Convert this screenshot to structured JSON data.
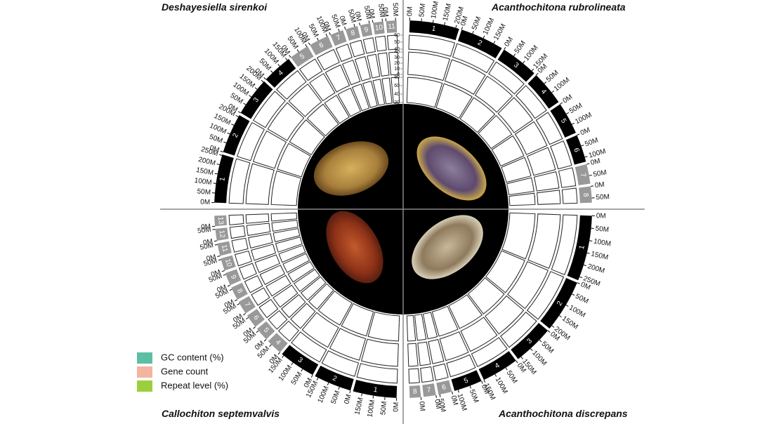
{
  "genomes": [
    {
      "species": "Deshayesiella sirenkoi",
      "chromosomes": [
        {
          "label": "1",
          "size": 255,
          "color": "#000000",
          "ticks": [
            {
              "value": 0,
              "label": "0M"
            },
            {
              "value": 50,
              "label": "50M"
            },
            {
              "value": 100,
              "label": "100M"
            },
            {
              "value": 150,
              "label": "150M"
            },
            {
              "value": 200,
              "label": "200M"
            },
            {
              "value": 250,
              "label": "250M"
            }
          ]
        },
        {
          "label": "2",
          "size": 210,
          "color": "#000000",
          "ticks": [
            {
              "value": 0,
              "label": "0M"
            },
            {
              "value": 50,
              "label": "50M"
            },
            {
              "value": 100,
              "label": "100M"
            },
            {
              "value": 150,
              "label": "150M"
            },
            {
              "value": 200,
              "label": "200M"
            }
          ]
        },
        {
          "label": "3",
          "size": 205,
          "color": "#000000",
          "ticks": [
            {
              "value": 0,
              "label": "0M"
            },
            {
              "value": 50,
              "label": "50M"
            },
            {
              "value": 100,
              "label": "100M"
            },
            {
              "value": 150,
              "label": "150M"
            },
            {
              "value": 200,
              "label": "200M"
            }
          ]
        },
        {
          "label": "4",
          "size": 160,
          "color": "#000000",
          "ticks": [
            {
              "value": 0,
              "label": "0M"
            },
            {
              "value": 50,
              "label": "50M"
            },
            {
              "value": 100,
              "label": "100M"
            },
            {
              "value": 150,
              "label": "150M"
            }
          ]
        },
        {
          "label": "5",
          "size": 105,
          "color": "#999999",
          "ticks": [
            {
              "value": 0,
              "label": "0M"
            },
            {
              "value": 50,
              "label": "50M"
            },
            {
              "value": 100,
              "label": "100M"
            }
          ]
        },
        {
          "label": "6",
          "size": 105,
          "color": "#999999",
          "ticks": [
            {
              "value": 0,
              "label": "0M"
            },
            {
              "value": 50,
              "label": "50M"
            },
            {
              "value": 100,
              "label": "100M"
            }
          ]
        },
        {
          "label": "7",
          "size": 70,
          "color": "#999999",
          "ticks": [
            {
              "value": 0,
              "label": "0M"
            },
            {
              "value": 50,
              "label": "50M"
            }
          ]
        },
        {
          "label": "8",
          "size": 65,
          "color": "#999999",
          "ticks": [
            {
              "value": 0,
              "label": "0M"
            },
            {
              "value": 50,
              "label": "50M"
            }
          ]
        },
        {
          "label": "9",
          "size": 55,
          "color": "#999999",
          "ticks": [
            {
              "value": 0,
              "label": "0M"
            },
            {
              "value": 50,
              "label": "50M"
            }
          ]
        },
        {
          "label": "10",
          "size": 55,
          "color": "#999999",
          "ticks": [
            {
              "value": 0,
              "label": "0M"
            },
            {
              "value": 50,
              "label": "50M"
            }
          ]
        },
        {
          "label": "11",
          "size": 55,
          "color": "#999999",
          "ticks": [
            {
              "value": 0,
              "label": "0M"
            },
            {
              "value": 50,
              "label": "50M"
            }
          ]
        }
      ]
    },
    {
      "species": "Acanthochitona rubrolineata",
      "chromosomes": [
        {
          "label": "1",
          "size": 215,
          "color": "#000000",
          "ticks": [
            {
              "value": 0,
              "label": "0M"
            },
            {
              "value": 50,
              "label": "50M"
            },
            {
              "value": 100,
              "label": "100M"
            },
            {
              "value": 150,
              "label": "150M"
            },
            {
              "value": 200,
              "label": "200M"
            }
          ]
        },
        {
          "label": "2",
          "size": 190,
          "color": "#000000",
          "ticks": [
            {
              "value": 0,
              "label": "0M"
            },
            {
              "value": 50,
              "label": "50M"
            },
            {
              "value": 100,
              "label": "100M"
            },
            {
              "value": 150,
              "label": "150M"
            }
          ]
        },
        {
          "label": "3",
          "size": 165,
          "color": "#000000",
          "ticks": [
            {
              "value": 0,
              "label": "0M"
            },
            {
              "value": 50,
              "label": "50M"
            },
            {
              "value": 100,
              "label": "100M"
            },
            {
              "value": 150,
              "label": "150M"
            }
          ]
        },
        {
          "label": "4",
          "size": 150,
          "color": "#000000",
          "ticks": [
            {
              "value": 0,
              "label": "0M"
            },
            {
              "value": 50,
              "label": "50M"
            },
            {
              "value": 100,
              "label": "100M"
            }
          ]
        },
        {
          "label": "5",
          "size": 140,
          "color": "#000000",
          "ticks": [
            {
              "value": 0,
              "label": "0M"
            },
            {
              "value": 50,
              "label": "50M"
            },
            {
              "value": 100,
              "label": "100M"
            }
          ]
        },
        {
          "label": "6",
          "size": 120,
          "color": "#000000",
          "ticks": [
            {
              "value": 0,
              "label": "0M"
            },
            {
              "value": 50,
              "label": "50M"
            },
            {
              "value": 100,
              "label": "100M"
            }
          ]
        },
        {
          "label": "7",
          "size": 85,
          "color": "#999999",
          "ticks": [
            {
              "value": 0,
              "label": "0M"
            },
            {
              "value": 50,
              "label": "50M"
            }
          ]
        },
        {
          "label": "8",
          "size": 70,
          "color": "#999999",
          "ticks": [
            {
              "value": 0,
              "label": "0M"
            },
            {
              "value": 50,
              "label": "50M"
            }
          ]
        }
      ]
    },
    {
      "species": "Acanthochitona discrepans",
      "chromosomes": [
        {
          "label": "1",
          "size": 265,
          "color": "#000000",
          "ticks": [
            {
              "value": 0,
              "label": "0M"
            },
            {
              "value": 50,
              "label": "50M"
            },
            {
              "value": 100,
              "label": "100M"
            },
            {
              "value": 150,
              "label": "150M"
            },
            {
              "value": 200,
              "label": "200M"
            },
            {
              "value": 250,
              "label": "250M"
            }
          ]
        },
        {
          "label": "2",
          "size": 215,
          "color": "#000000",
          "ticks": [
            {
              "value": 0,
              "label": "0M"
            },
            {
              "value": 50,
              "label": "50M"
            },
            {
              "value": 100,
              "label": "100M"
            },
            {
              "value": 150,
              "label": "150M"
            },
            {
              "value": 200,
              "label": "200M"
            }
          ]
        },
        {
          "label": "3",
          "size": 165,
          "color": "#000000",
          "ticks": [
            {
              "value": 0,
              "label": "0M"
            },
            {
              "value": 50,
              "label": "50M"
            },
            {
              "value": 100,
              "label": "100M"
            },
            {
              "value": 150,
              "label": "150M"
            }
          ]
        },
        {
          "label": "4",
          "size": 150,
          "color": "#000000",
          "ticks": [
            {
              "value": 0,
              "label": "0M"
            },
            {
              "value": 50,
              "label": "50M"
            },
            {
              "value": 100,
              "label": "100M"
            },
            {
              "value": 150,
              "label": "150M"
            }
          ]
        },
        {
          "label": "5",
          "size": 115,
          "color": "#000000",
          "ticks": [
            {
              "value": 0,
              "label": "0M"
            },
            {
              "value": 50,
              "label": "50M"
            },
            {
              "value": 100,
              "label": "100M"
            }
          ]
        },
        {
          "label": "6",
          "size": 55,
          "color": "#999999",
          "ticks": [
            {
              "value": 0,
              "label": "0M"
            },
            {
              "value": 50,
              "label": "50M"
            }
          ]
        },
        {
          "label": "7",
          "size": 50,
          "color": "#999999",
          "ticks": [
            {
              "value": 0,
              "label": "0M"
            }
          ]
        },
        {
          "label": "8",
          "size": 45,
          "color": "#999999",
          "ticks": [
            {
              "value": 0,
              "label": "0M"
            }
          ]
        }
      ]
    },
    {
      "species": "Callochiton septemvalvis",
      "chromosomes": [
        {
          "label": "1",
          "size": 190,
          "color": "#000000",
          "ticks": [
            {
              "value": 0,
              "label": "0M"
            },
            {
              "value": 50,
              "label": "50M"
            },
            {
              "value": 100,
              "label": "100M"
            },
            {
              "value": 150,
              "label": "150M"
            }
          ]
        },
        {
          "label": "2",
          "size": 165,
          "color": "#000000",
          "ticks": [
            {
              "value": 0,
              "label": "0M"
            },
            {
              "value": 50,
              "label": "50M"
            },
            {
              "value": 100,
              "label": "100M"
            },
            {
              "value": 150,
              "label": "150M"
            }
          ]
        },
        {
          "label": "3",
          "size": 160,
          "color": "#000000",
          "ticks": [
            {
              "value": 0,
              "label": "0M"
            },
            {
              "value": 50,
              "label": "50M"
            },
            {
              "value": 100,
              "label": "100M"
            },
            {
              "value": 150,
              "label": "150M"
            }
          ]
        },
        {
          "label": "4",
          "size": 70,
          "color": "#999999",
          "ticks": [
            {
              "value": 0,
              "label": "0M"
            },
            {
              "value": 50,
              "label": "50M"
            }
          ]
        },
        {
          "label": "5",
          "size": 60,
          "color": "#999999",
          "ticks": [
            {
              "value": 0,
              "label": "0M"
            },
            {
              "value": 50,
              "label": "50M"
            }
          ]
        },
        {
          "label": "6",
          "size": 60,
          "color": "#999999",
          "ticks": [
            {
              "value": 0,
              "label": "0M"
            },
            {
              "value": 50,
              "label": "50M"
            }
          ]
        },
        {
          "label": "7",
          "size": 58,
          "color": "#999999",
          "ticks": [
            {
              "value": 0,
              "label": "0M"
            },
            {
              "value": 50,
              "label": "50M"
            }
          ]
        },
        {
          "label": "8",
          "size": 58,
          "color": "#999999",
          "ticks": [
            {
              "value": 0,
              "label": "0M"
            },
            {
              "value": 50,
              "label": "50M"
            }
          ]
        },
        {
          "label": "9",
          "size": 56,
          "color": "#999999",
          "ticks": [
            {
              "value": 0,
              "label": "0M"
            },
            {
              "value": 50,
              "label": "50M"
            }
          ]
        },
        {
          "label": "10",
          "size": 55,
          "color": "#999999",
          "ticks": [
            {
              "value": 0,
              "label": "0M"
            },
            {
              "value": 50,
              "label": "50M"
            }
          ]
        },
        {
          "label": "11",
          "size": 55,
          "color": "#999999",
          "ticks": [
            {
              "value": 0,
              "label": "0M"
            },
            {
              "value": 50,
              "label": "50M"
            }
          ]
        },
        {
          "label": "12",
          "size": 52,
          "color": "#999999",
          "ticks": [
            {
              "value": 0,
              "label": "0M"
            },
            {
              "value": 50,
              "label": "50M"
            }
          ]
        },
        {
          "label": "13",
          "size": 45,
          "color": "#999999",
          "ticks": [
            {
              "value": 0,
              "label": "0M"
            }
          ]
        }
      ]
    }
  ],
  "track_scales": {
    "gc": [
      40,
      50,
      60
    ],
    "gene": [
      0,
      10,
      20,
      30,
      40
    ],
    "repeat": [
      20,
      40,
      60,
      80
    ]
  },
  "legend": [
    {
      "label": "GC content (%)",
      "color": "#5cbfa3"
    },
    {
      "label": "Gene count",
      "color": "#f4b5a0"
    },
    {
      "label": "Repeat level (%)",
      "color": "#9ccf3c"
    }
  ]
}
